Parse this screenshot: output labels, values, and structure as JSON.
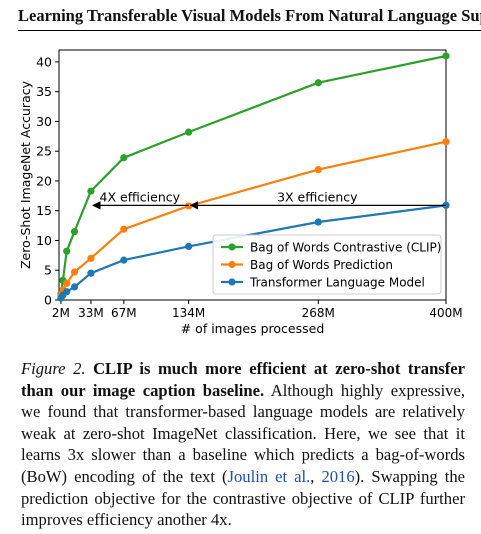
{
  "paper": {
    "header_title": "Learning Transferable Visual Models From Natural Language Supervision",
    "caption": {
      "figure_label": "Figure 2.",
      "bold_text": "CLIP is much more efficient at zero-shot transfer than our image caption baseline.",
      "text_before_cite": "Although highly expressive, we found that transformer-based language models are relatively weak at zero-shot ImageNet classification. Here, we see that it learns 3x slower than a baseline which predicts a bag-of-words (BoW) encoding of the text (",
      "cite_author": "Joulin et al.",
      "cite_sep": ", ",
      "cite_year": "2016",
      "text_after_cite": "). Swapping the prediction objective for the contrastive objective of CLIP further improves efficiency another 4x."
    }
  },
  "chart_data": {
    "type": "line",
    "xlabel": "# of images processed",
    "ylabel": "Zero-Shot ImageNet Accuracy",
    "xlim": [
      0,
      400
    ],
    "ylim": [
      0,
      42
    ],
    "x_ticks": [
      {
        "value": 2,
        "label": "2M"
      },
      {
        "value": 33,
        "label": "33M"
      },
      {
        "value": 67,
        "label": "67M"
      },
      {
        "value": 134,
        "label": "134M"
      },
      {
        "value": 268,
        "label": "268M"
      },
      {
        "value": 400,
        "label": "400M"
      }
    ],
    "y_ticks": [
      0,
      5,
      10,
      15,
      20,
      25,
      30,
      35,
      40
    ],
    "series": [
      {
        "name": "Bag of Words Contrastive (CLIP)",
        "color": "#2ca02c",
        "x": [
          2,
          4,
          8,
          16,
          33,
          67,
          134,
          268,
          400
        ],
        "y": [
          1,
          3.3,
          8.2,
          11.5,
          18.3,
          23.9,
          28.2,
          36.5,
          41
        ]
      },
      {
        "name": "Bag of Words Prediction",
        "color": "#ff7f0e",
        "x": [
          2,
          4,
          8,
          16,
          33,
          67,
          134,
          268,
          400
        ],
        "y": [
          0.8,
          1.7,
          2.8,
          4.7,
          7,
          11.9,
          15.8,
          21.9,
          26.6
        ]
      },
      {
        "name": "Transformer Language Model",
        "color": "#1f77b4",
        "x": [
          2,
          4,
          8,
          16,
          33,
          67,
          134,
          268,
          400
        ],
        "y": [
          0.3,
          0.8,
          1.4,
          2.2,
          4.5,
          6.7,
          9,
          13.1,
          15.9
        ]
      }
    ],
    "annotations": [
      {
        "text": "4X efficiency",
        "x_from": 134,
        "x_to": 33,
        "y": 15.9
      },
      {
        "text": "3X efficiency",
        "x_from": 400,
        "x_to": 134,
        "y": 15.9
      }
    ],
    "legend_position": "lower-right",
    "grid": false
  }
}
